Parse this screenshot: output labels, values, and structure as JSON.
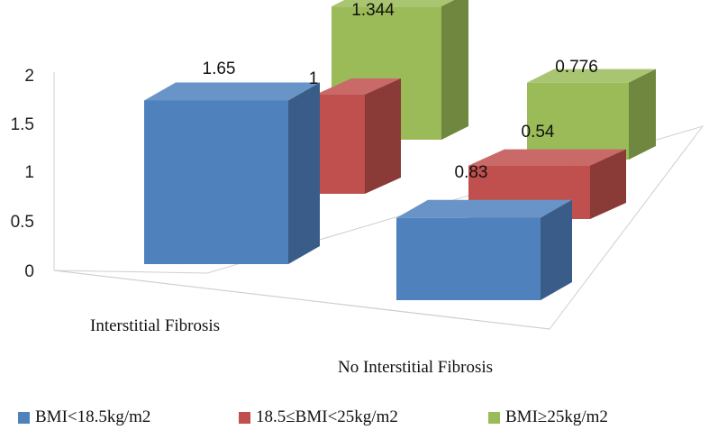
{
  "chart_data": {
    "type": "bar",
    "categories": [
      "Interstitial Fibrosis",
      "No Interstitial Fibrosis"
    ],
    "series": [
      {
        "name": "BMI<18.5kg/m2",
        "values": [
          1.65,
          0.83
        ],
        "labels": [
          "1.65",
          "0.83"
        ],
        "color": "#4f81bd"
      },
      {
        "name": "18.5≤BMI<25kg/m2",
        "values": [
          1,
          0.54
        ],
        "labels": [
          "1",
          "0.54"
        ],
        "color": "#c0504d"
      },
      {
        "name": "BMI≥25kg/m2",
        "values": [
          1.344,
          0.776
        ],
        "labels": [
          "1.344",
          "0.776"
        ],
        "color": "#9bbb59"
      }
    ],
    "yticks": [
      "0",
      "0.5",
      "1",
      "1.5",
      "2"
    ],
    "ylim": [
      0,
      2
    ],
    "legend_position": "bottom",
    "grid": false
  }
}
